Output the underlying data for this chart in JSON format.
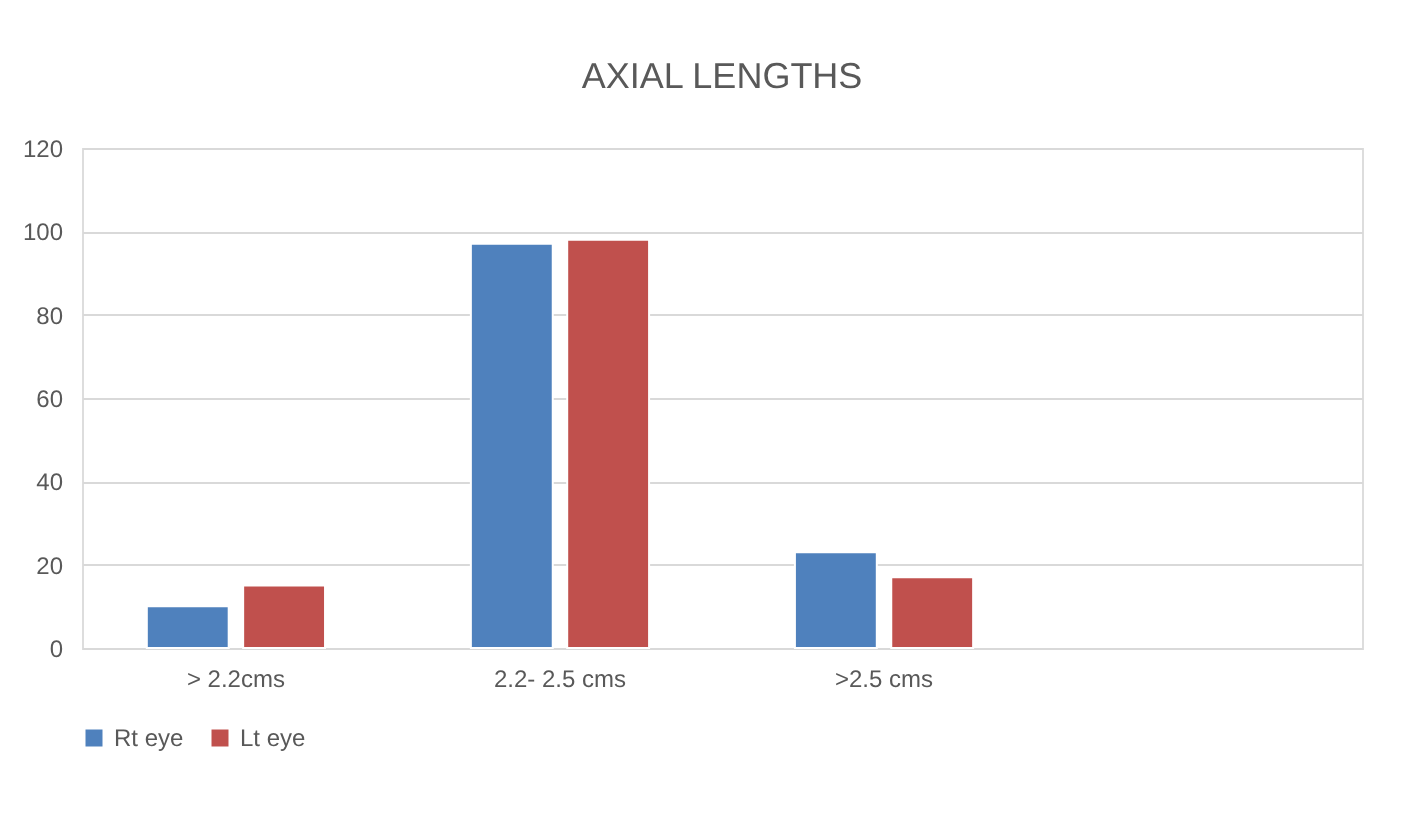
{
  "chart_data": {
    "type": "bar",
    "title": "AXIAL LENGTHS",
    "categories": [
      "> 2.2cms",
      "2.2- 2.5 cms",
      ">2.5 cms",
      null
    ],
    "series": [
      {
        "name": "Rt eye",
        "color": "#4f81bd",
        "values": [
          10,
          97,
          23,
          null
        ]
      },
      {
        "name": "Lt eye",
        "color": "#c0504d",
        "values": [
          15,
          98,
          17,
          null
        ]
      }
    ],
    "ylim": [
      0,
      120
    ],
    "yticks": [
      0,
      20,
      40,
      60,
      80,
      100,
      120
    ],
    "grid": "y",
    "legend": "bottom"
  }
}
